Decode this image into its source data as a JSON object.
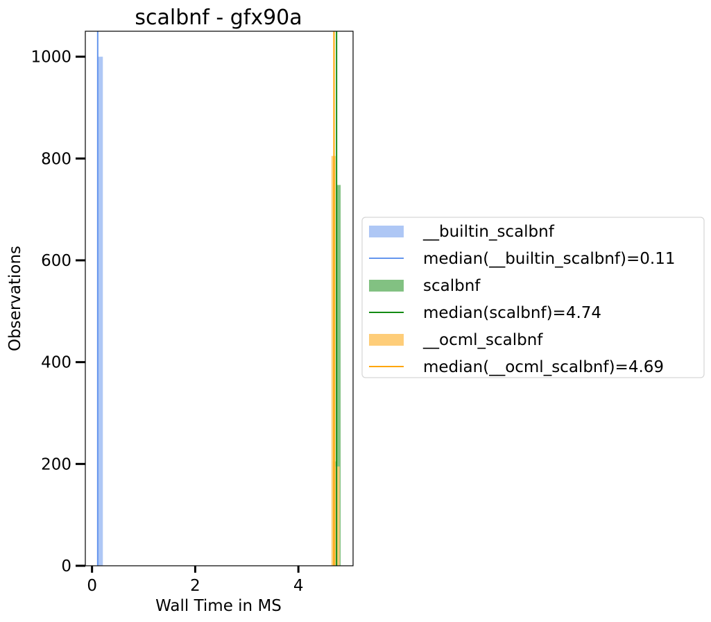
{
  "chart_data": {
    "type": "histogram",
    "title": "scalbnf - gfx90a",
    "xlabel": "Wall Time in MS",
    "ylabel": "Observations",
    "xlim": [
      -0.13,
      5.06
    ],
    "ylim": [
      0,
      1050
    ],
    "x_ticks": [
      0,
      2,
      4
    ],
    "y_ticks": [
      0,
      200,
      400,
      600,
      800,
      1000
    ],
    "grid": false,
    "legend_position": "center-right outside",
    "series": [
      {
        "name": "__builtin_scalbnf",
        "kind": "hist",
        "color": "#aec7f5",
        "bins": [
          {
            "x0": 0.11,
            "x1": 0.21,
            "count": 1000
          }
        ]
      },
      {
        "name": "scalbnf",
        "kind": "hist",
        "color": "#82c182",
        "bins": [
          {
            "x0": 4.66,
            "x1": 4.74,
            "count": 205
          },
          {
            "x0": 4.74,
            "x1": 4.82,
            "count": 748
          }
        ]
      },
      {
        "name": "__ocml_scalbnf",
        "kind": "hist",
        "color": "#fecd79",
        "bins": [
          {
            "x0": 4.64,
            "x1": 4.72,
            "count": 805
          },
          {
            "x0": 4.72,
            "x1": 4.8,
            "count": 195
          }
        ]
      }
    ],
    "medians": [
      {
        "name": "median(__builtin_scalbnf)=0.11",
        "value": 0.11,
        "color": "#6495ed"
      },
      {
        "name": "median(scalbnf)=4.74",
        "value": 4.74,
        "color": "#138a13"
      },
      {
        "name": "median(__ocml_scalbnf)=4.69",
        "value": 4.69,
        "color": "#ffa500"
      }
    ],
    "legend": [
      {
        "label": "__builtin_scalbnf",
        "kind": "patch",
        "color": "#aec7f5"
      },
      {
        "label": "median(__builtin_scalbnf)=0.11",
        "kind": "line",
        "color": "#6495ed"
      },
      {
        "label": "scalbnf",
        "kind": "patch",
        "color": "#82c182"
      },
      {
        "label": "median(scalbnf)=4.74",
        "kind": "line",
        "color": "#138a13"
      },
      {
        "label": "__ocml_scalbnf",
        "kind": "patch",
        "color": "#fecd79"
      },
      {
        "label": "median(__ocml_scalbnf)=4.69",
        "kind": "line",
        "color": "#ffa500"
      }
    ]
  }
}
